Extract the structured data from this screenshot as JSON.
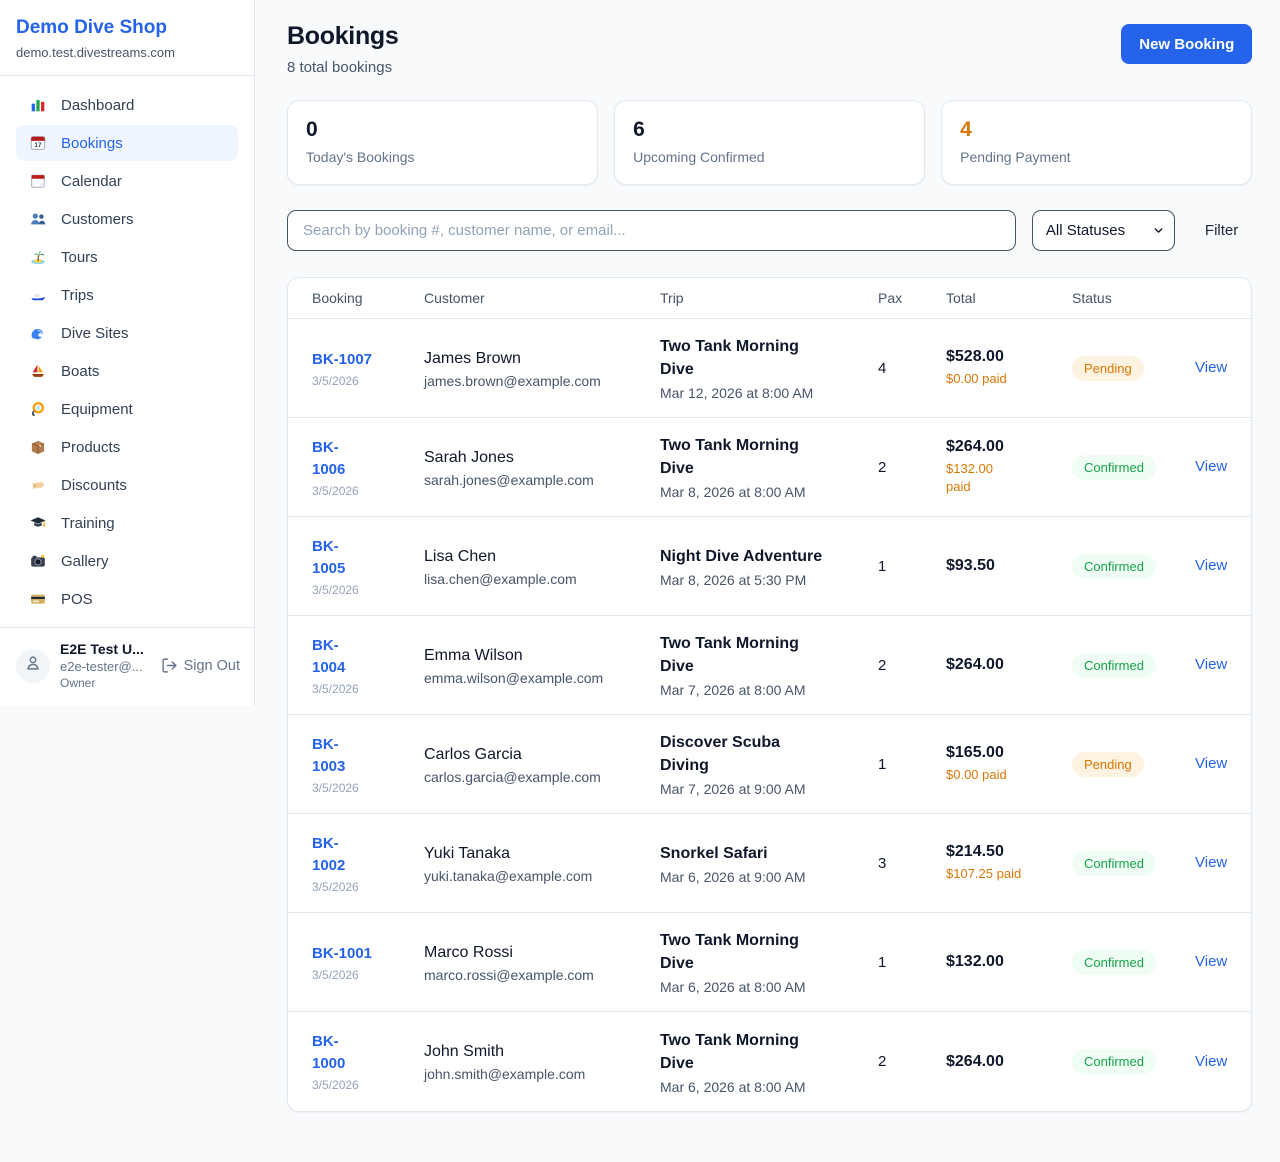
{
  "colors": {
    "accent": "#2563eb",
    "pending_text": "#d97706",
    "pending_bg": "#fdf3e0",
    "confirmed_text": "#16a34a",
    "confirmed_bg": "#f0fdf4",
    "paid_orange": "#d97706"
  },
  "sidebar": {
    "brand": "Demo Dive Shop",
    "domain": "demo.test.divestreams.com",
    "items": [
      {
        "label": "Dashboard",
        "icon": "bar-chart",
        "active": false
      },
      {
        "label": "Bookings",
        "icon": "calendar-date",
        "active": true
      },
      {
        "label": "Calendar",
        "icon": "calendar",
        "active": false
      },
      {
        "label": "Customers",
        "icon": "people",
        "active": false
      },
      {
        "label": "Tours",
        "icon": "island",
        "active": false
      },
      {
        "label": "Trips",
        "icon": "speedboat",
        "active": false
      },
      {
        "label": "Dive Sites",
        "icon": "wave",
        "active": false
      },
      {
        "label": "Boats",
        "icon": "sailboat",
        "active": false
      },
      {
        "label": "Equipment",
        "icon": "dive-mask",
        "active": false
      },
      {
        "label": "Products",
        "icon": "package",
        "active": false
      },
      {
        "label": "Discounts",
        "icon": "tag",
        "active": false
      },
      {
        "label": "Training",
        "icon": "graduation-cap",
        "active": false
      },
      {
        "label": "Gallery",
        "icon": "camera",
        "active": false
      },
      {
        "label": "POS",
        "icon": "credit-card",
        "active": false
      }
    ],
    "user": {
      "name": "E2E Test U...",
      "email": "e2e-tester@...",
      "role": "Owner",
      "sign_out_label": "Sign Out"
    }
  },
  "header": {
    "title": "Bookings",
    "subtitle": "8 total bookings",
    "new_booking_label": "New Booking"
  },
  "stats": [
    {
      "value": "0",
      "label": "Today's Bookings",
      "orange": false
    },
    {
      "value": "6",
      "label": "Upcoming Confirmed",
      "orange": false
    },
    {
      "value": "4",
      "label": "Pending Payment",
      "orange": true
    }
  ],
  "controls": {
    "search_placeholder": "Search by booking #, customer name, or email...",
    "status_filter": "All Statuses",
    "filter_label": "Filter"
  },
  "table": {
    "columns": [
      "Booking",
      "Customer",
      "Trip",
      "Pax",
      "Total",
      "Status"
    ],
    "view_label": "View",
    "rows": [
      {
        "id_lines": [
          "BK-1007"
        ],
        "date": "3/5/2026",
        "name": "James Brown",
        "email": "james.brown@example.com",
        "trip_lines": [
          "Two Tank Morning",
          "Dive"
        ],
        "trip_time": "Mar 12, 2026 at 8:00 AM",
        "pax": "4",
        "total": "$528.00",
        "paid_lines": [
          "$0.00 paid"
        ],
        "status": "Pending"
      },
      {
        "id_lines": [
          "BK-",
          "1006"
        ],
        "date": "3/5/2026",
        "name": "Sarah Jones",
        "email": "sarah.jones@example.com",
        "trip_lines": [
          "Two Tank Morning",
          "Dive"
        ],
        "trip_time": "Mar 8, 2026 at 8:00 AM",
        "pax": "2",
        "total": "$264.00",
        "paid_lines": [
          "$132.00",
          "paid"
        ],
        "status": "Confirmed"
      },
      {
        "id_lines": [
          "BK-",
          "1005"
        ],
        "date": "3/5/2026",
        "name": "Lisa Chen",
        "email": "lisa.chen@example.com",
        "trip_lines": [
          "Night Dive Adventure"
        ],
        "trip_time": "Mar 8, 2026 at 5:30 PM",
        "pax": "1",
        "total": "$93.50",
        "paid_lines": [],
        "status": "Confirmed"
      },
      {
        "id_lines": [
          "BK-",
          "1004"
        ],
        "date": "3/5/2026",
        "name": "Emma Wilson",
        "email": "emma.wilson@example.com",
        "trip_lines": [
          "Two Tank Morning",
          "Dive"
        ],
        "trip_time": "Mar 7, 2026 at 8:00 AM",
        "pax": "2",
        "total": "$264.00",
        "paid_lines": [],
        "status": "Confirmed"
      },
      {
        "id_lines": [
          "BK-",
          "1003"
        ],
        "date": "3/5/2026",
        "name": "Carlos Garcia",
        "email": "carlos.garcia@example.com",
        "trip_lines": [
          "Discover Scuba",
          "Diving"
        ],
        "trip_time": "Mar 7, 2026 at 9:00 AM",
        "pax": "1",
        "total": "$165.00",
        "paid_lines": [
          "$0.00 paid"
        ],
        "status": "Pending"
      },
      {
        "id_lines": [
          "BK-",
          "1002"
        ],
        "date": "3/5/2026",
        "name": "Yuki Tanaka",
        "email": "yuki.tanaka@example.com",
        "trip_lines": [
          "Snorkel Safari"
        ],
        "trip_time": "Mar 6, 2026 at 9:00 AM",
        "pax": "3",
        "total": "$214.50",
        "paid_lines": [
          "$107.25 paid"
        ],
        "status": "Confirmed"
      },
      {
        "id_lines": [
          "BK-1001"
        ],
        "date": "3/5/2026",
        "name": "Marco Rossi",
        "email": "marco.rossi@example.com",
        "trip_lines": [
          "Two Tank Morning",
          "Dive"
        ],
        "trip_time": "Mar 6, 2026 at 8:00 AM",
        "pax": "1",
        "total": "$132.00",
        "paid_lines": [],
        "status": "Confirmed"
      },
      {
        "id_lines": [
          "BK-",
          "1000"
        ],
        "date": "3/5/2026",
        "name": "John Smith",
        "email": "john.smith@example.com",
        "trip_lines": [
          "Two Tank Morning",
          "Dive"
        ],
        "trip_time": "Mar 6, 2026 at 8:00 AM",
        "pax": "2",
        "total": "$264.00",
        "paid_lines": [],
        "status": "Confirmed"
      }
    ]
  }
}
